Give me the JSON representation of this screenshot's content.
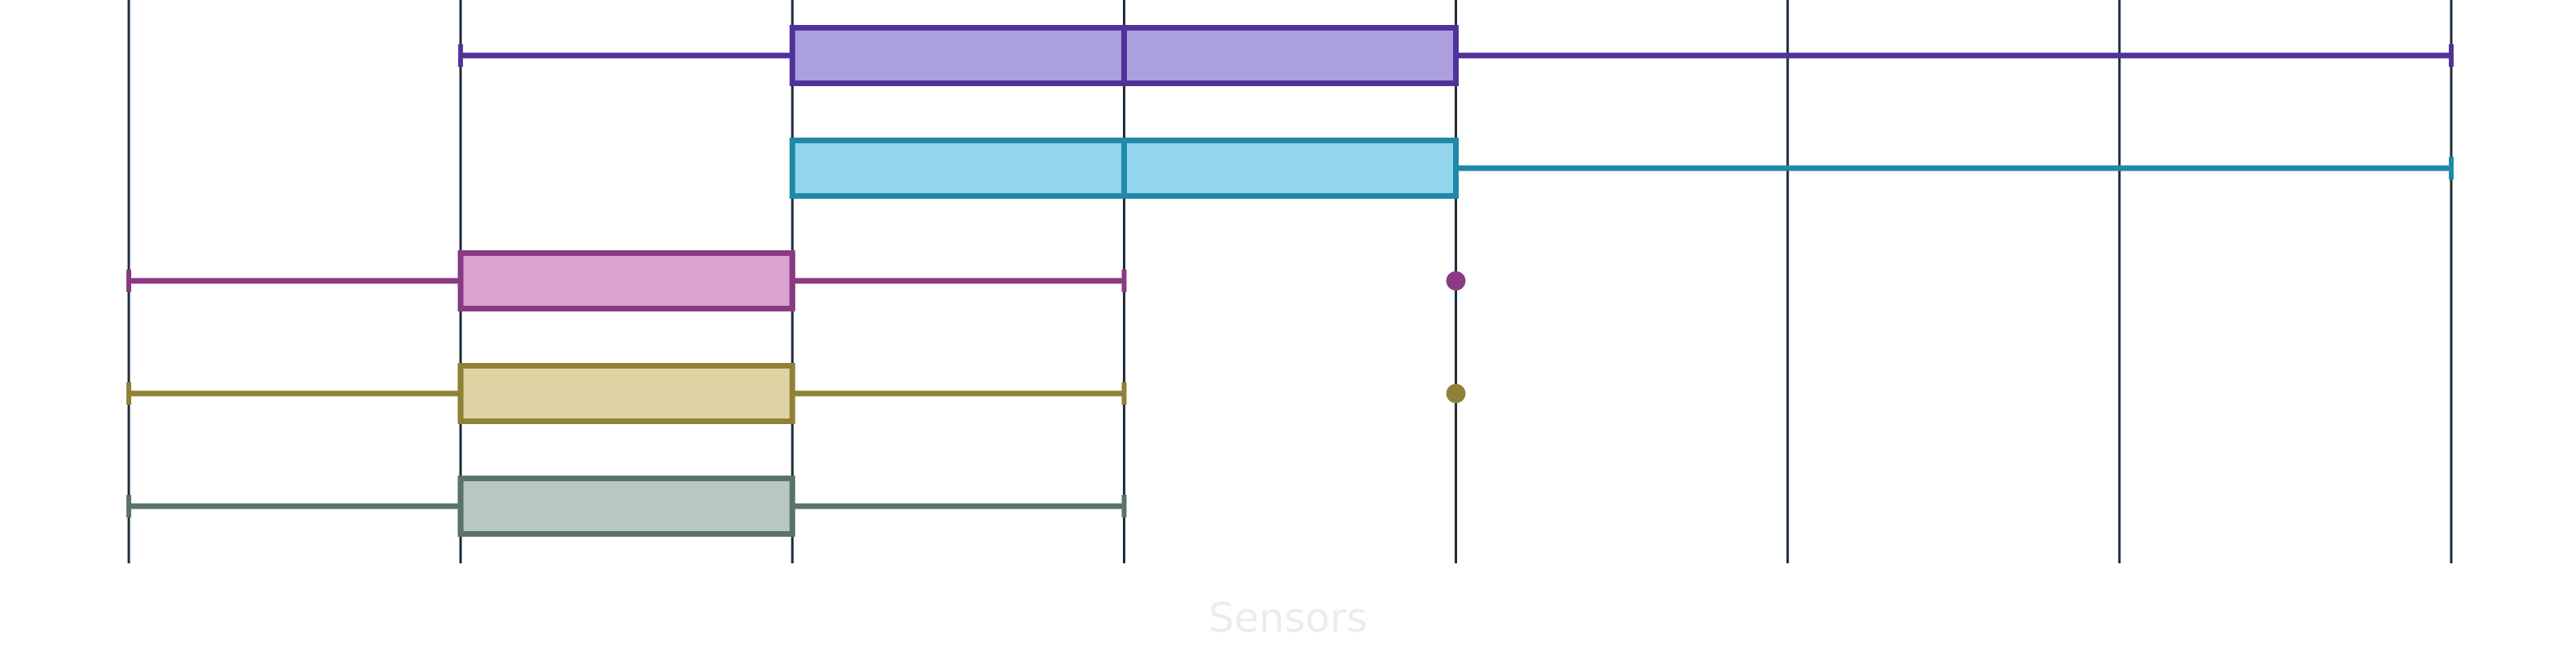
{
  "chart_data": {
    "type": "box",
    "orientation": "horizontal",
    "title": "",
    "xlabel": "Sensors",
    "ylabel": "",
    "xlim": [
      0,
      7
    ],
    "grid": {
      "x": true,
      "y": false
    },
    "legend": "none",
    "series": [
      {
        "min": 1,
        "q1": 2,
        "median": 3,
        "q3": 4,
        "max": 7,
        "outliers": [],
        "stroke": "#4f339a",
        "fill": "#ac9fe0"
      },
      {
        "min": 2,
        "q1": 2,
        "median": 3,
        "q3": 4,
        "max": 7,
        "outliers": [],
        "stroke": "#2089a8",
        "fill": "#92d5ec"
      },
      {
        "min": 0,
        "q1": 1,
        "median": 2,
        "q3": 2,
        "max": 3,
        "outliers": [
          4
        ],
        "stroke": "#8a3a83",
        "fill": "#d9a2cf"
      },
      {
        "min": 0,
        "q1": 1,
        "median": 1,
        "q3": 2,
        "max": 3,
        "outliers": [
          4
        ],
        "stroke": "#8f8237",
        "fill": "#ded4a3"
      },
      {
        "min": 0,
        "q1": 1,
        "median": 1,
        "q3": 2,
        "max": 3,
        "outliers": [],
        "stroke": "#5a7368",
        "fill": "#b6c8c1"
      }
    ],
    "colors": {
      "grid": "#1c2b3a",
      "axis_label": "#e9edf0"
    }
  }
}
